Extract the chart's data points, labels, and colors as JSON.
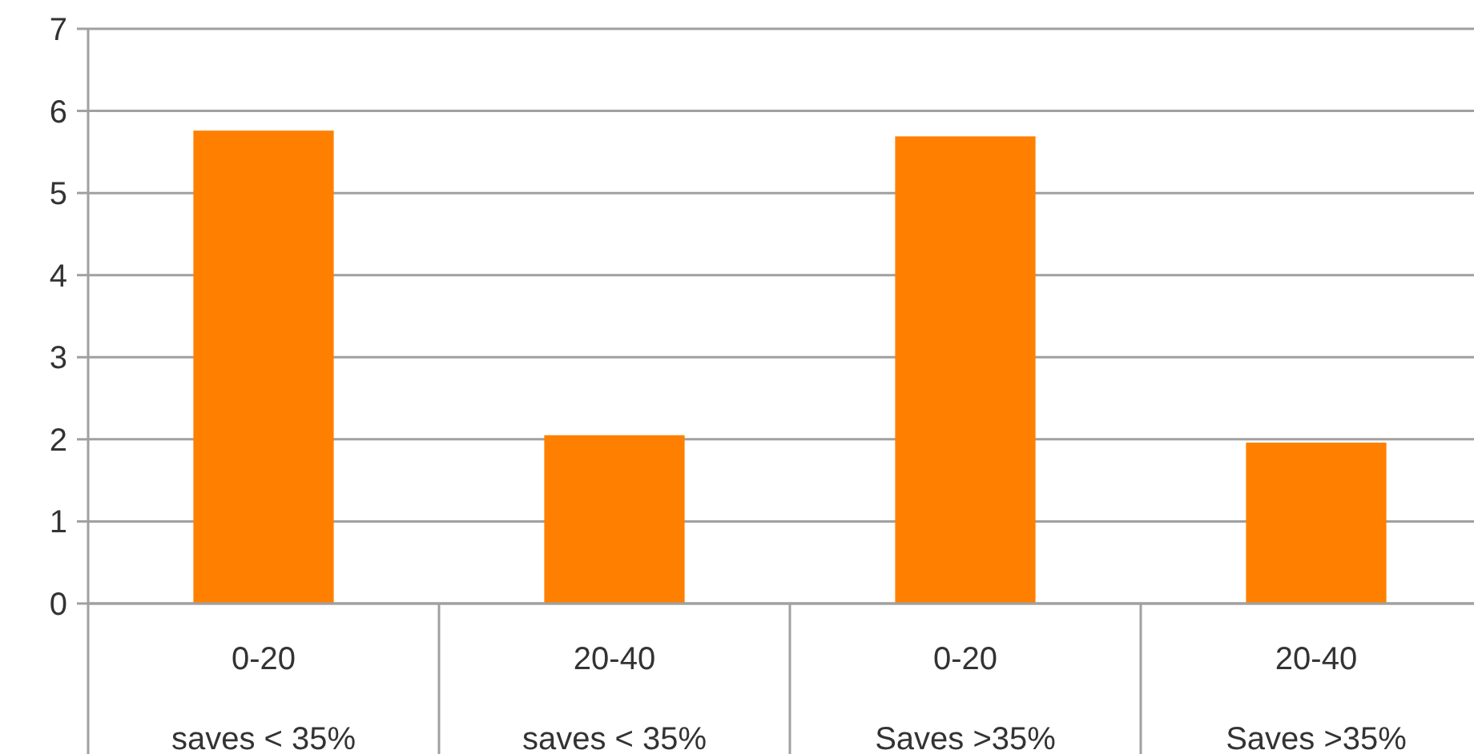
{
  "chart_data": {
    "type": "bar",
    "categories": [
      "0-20\nsaves < 35%",
      "20-40\nsaves < 35%",
      "0-20\nSaves >35%",
      "20-40\nSaves >35%"
    ],
    "values": [
      5.76,
      2.05,
      5.69,
      1.96
    ],
    "color": "#ff8000",
    "ylim": [
      0,
      7
    ],
    "yticks": [
      0,
      1,
      2,
      3,
      4,
      5,
      6,
      7
    ],
    "grid": "y"
  }
}
